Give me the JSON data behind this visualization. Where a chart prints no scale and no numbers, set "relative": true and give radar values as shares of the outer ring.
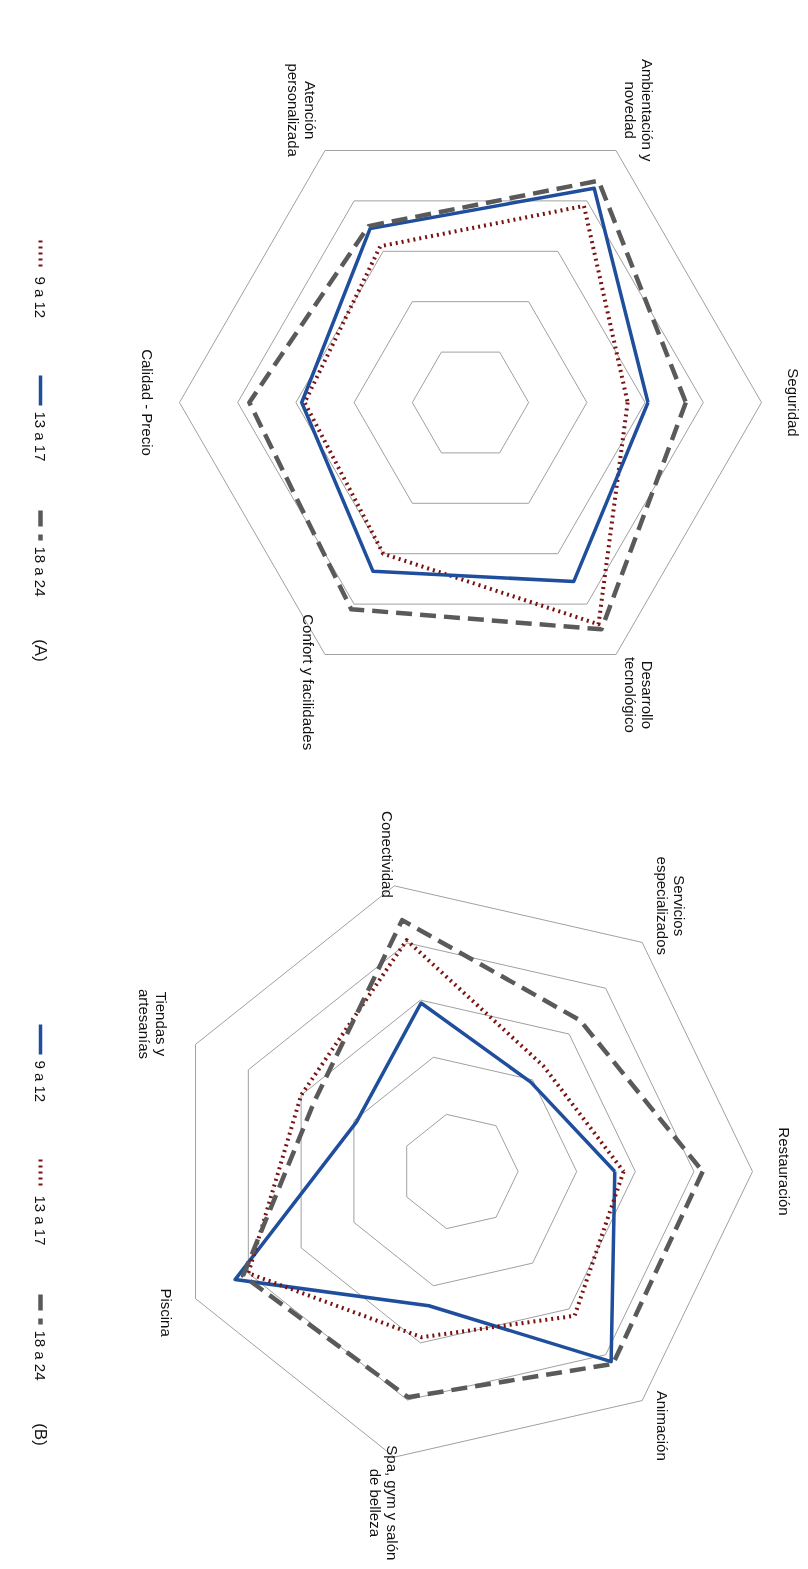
{
  "chart_data": [
    {
      "type": "radar",
      "relative": true,
      "grid": true,
      "legend": "bottom",
      "annotations": [
        "(A)"
      ],
      "categories": [
        "Seguridad",
        "Desarrollo\ntecnológico",
        "Confort y facilidades",
        "Calidad - Precio",
        "Atención\npersonalizada",
        "Ambientación y\nnovedad"
      ],
      "series": [
        {
          "name": "9 a 12",
          "color": "#7a1212",
          "line_style": "dotted",
          "values": [
            0.54,
            0.88,
            0.6,
            0.57,
            0.62,
            0.78
          ]
        },
        {
          "name": "13 a 17",
          "color": "#1f4e9c",
          "line_style": "solid",
          "values": [
            0.61,
            0.71,
            0.67,
            0.58,
            0.69,
            0.85
          ]
        },
        {
          "name": "18 a 24",
          "color": "#5a5a5a",
          "line_style": "dashed",
          "values": [
            0.74,
            0.9,
            0.82,
            0.76,
            0.7,
            0.88
          ]
        }
      ]
    },
    {
      "type": "radar",
      "relative": true,
      "grid": true,
      "legend": "bottom",
      "annotations": [
        "(B)"
      ],
      "categories": [
        "Restauración",
        "Animación",
        "Spa, gym y salón\nde belleza",
        "Piscina",
        "Tiendas y\nartesanías",
        "Conectividad",
        "Servicios\nespecializados"
      ],
      "series": [
        {
          "name": "9 a 12",
          "color": "#1f4e9c",
          "line_style": "solid",
          "values": [
            0.53,
            0.83,
            0.47,
            0.85,
            0.39,
            0.59,
            0.39
          ]
        },
        {
          "name": "13 a 17",
          "color": "#7a1212",
          "line_style": "dotted",
          "values": [
            0.56,
            0.63,
            0.58,
            0.8,
            0.6,
            0.81,
            0.46
          ]
        },
        {
          "name": "18 a 24",
          "color": "#5a5a5a",
          "line_style": "dashed",
          "values": [
            0.83,
            0.84,
            0.79,
            0.82,
            0.55,
            0.88,
            0.66
          ]
        }
      ]
    }
  ]
}
